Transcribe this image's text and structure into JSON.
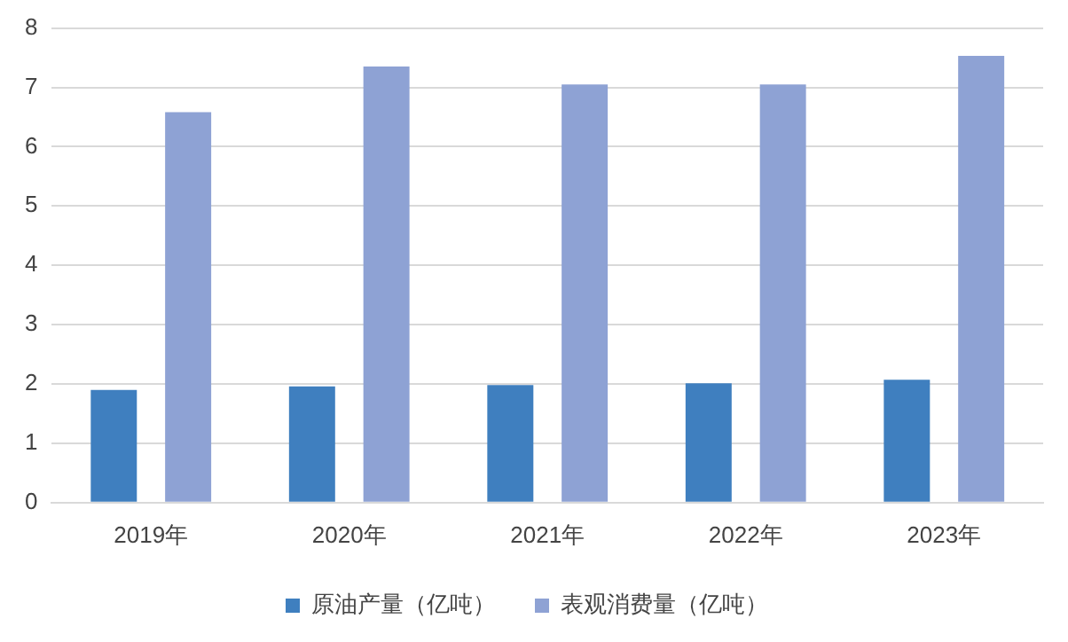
{
  "chart_data": {
    "type": "bar",
    "categories": [
      "2019年",
      "2020年",
      "2021年",
      "2022年",
      "2023年"
    ],
    "series": [
      {
        "name": "原油产量（亿吨）",
        "color": "#3f7fbf",
        "values": [
          1.9,
          1.96,
          1.98,
          2.01,
          2.07
        ]
      },
      {
        "name": "表观消费量（亿吨）",
        "color": "#8ea2d4",
        "values": [
          6.58,
          7.35,
          7.05,
          7.05,
          7.53
        ]
      }
    ],
    "ylim": [
      0,
      8
    ],
    "yticks": [
      0,
      1,
      2,
      3,
      4,
      5,
      6,
      7,
      8
    ],
    "grid": "y",
    "legend": "bottom"
  }
}
